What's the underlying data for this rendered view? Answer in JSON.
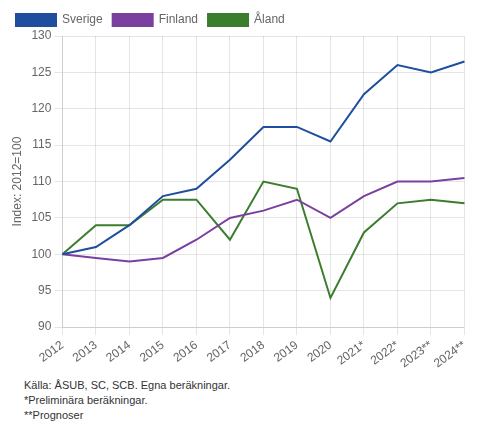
{
  "chart_data": {
    "type": "line",
    "categories": [
      "2012",
      "2013",
      "2014",
      "2015",
      "2016",
      "2017",
      "2018",
      "2019",
      "2020",
      "2021*",
      "2022*",
      "2023**",
      "2024**"
    ],
    "series": [
      {
        "name": "Sverige",
        "color": "#1f4e9e",
        "values": [
          100,
          101,
          104,
          108,
          109,
          113,
          117.5,
          117.5,
          115.5,
          122,
          126,
          125,
          126.5
        ]
      },
      {
        "name": "Finland",
        "color": "#7b3fa0",
        "values": [
          100,
          99.5,
          99,
          99.5,
          102,
          105,
          106,
          107.5,
          105,
          108,
          110,
          110,
          110.5
        ]
      },
      {
        "name": "Åland",
        "color": "#3a7d2c",
        "values": [
          100,
          104,
          104,
          107.5,
          107.5,
          102,
          110,
          109,
          94,
          103,
          107,
          107.5,
          107
        ]
      }
    ],
    "y_label": "Index: 2012=100",
    "ylim": [
      90,
      130
    ],
    "yticks": [
      90,
      95,
      100,
      105,
      110,
      115,
      120,
      125,
      130
    ],
    "grid": true,
    "legend": "upper left",
    "annotations": [
      "Källa: ÅSUB, SC, SCB. Egna beräkningar.",
      "*Preliminära beräkningar.",
      "**Prognoser"
    ]
  }
}
